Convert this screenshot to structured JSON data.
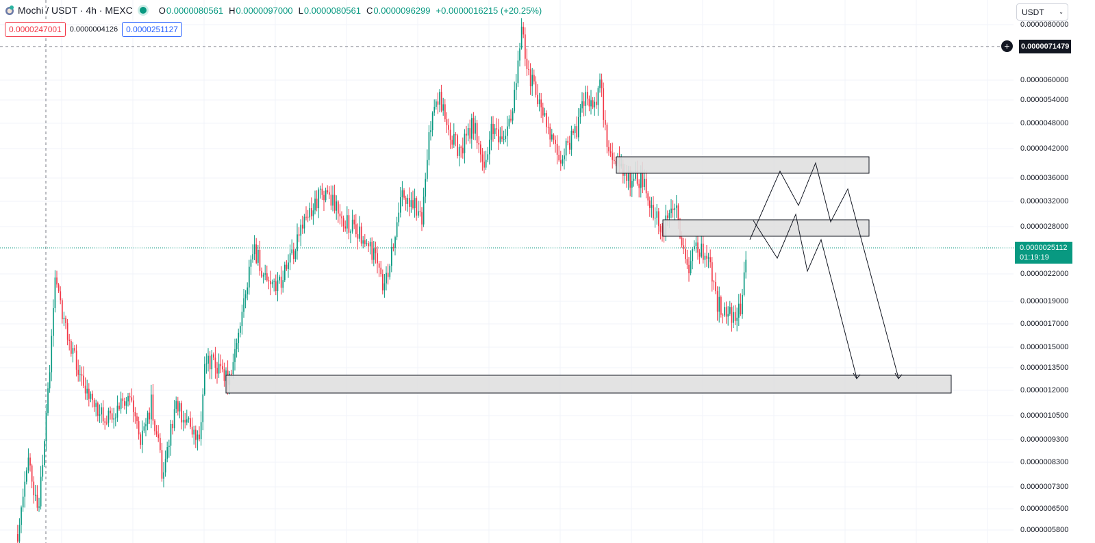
{
  "header": {
    "symbol": "Mochi / USDT · 4h · MEXC",
    "open_label": "O",
    "open": "0.0000080561",
    "high_label": "H",
    "high": "0.0000097000",
    "low_label": "L",
    "low": "0.0000080561",
    "close_label": "C",
    "close": "0.0000096299",
    "change": "+0.0000016215 (+20.25%)"
  },
  "trade": {
    "sell": "0.0000247001",
    "spread": "0.0000004126",
    "buy": "0.0000251127"
  },
  "currency": {
    "selected": "USDT"
  },
  "price_axis": [
    "0.0000080000",
    "0.0000060000",
    "0.0000054000",
    "0.0000048000",
    "0.0000042000",
    "0.0000036000",
    "0.0000032000",
    "0.0000028000",
    "0.0000022000",
    "0.0000019000",
    "0.0000017000",
    "0.0000015000",
    "0.0000013500",
    "0.0000012000",
    "0.0000010500",
    "0.0000009300",
    "0.0000008300",
    "0.0000007300",
    "0.0000006500",
    "0.0000005800"
  ],
  "crosshair": {
    "price": "0.0000071479"
  },
  "last_price": {
    "price": "0.0000025112",
    "countdown": "01:19:19"
  },
  "colors": {
    "up": "#089981",
    "down": "#f23645",
    "box_fill": "#e0e0e0",
    "box_stroke": "#131722",
    "grid": "#f0f3fa"
  },
  "chart_data": {
    "type": "candlestick",
    "symbol": "Mochi / USDT",
    "timeframe": "4h",
    "exchange": "MEXC",
    "scale": "log",
    "ylim": [
      5.8e-06,
      8.2e-06
    ],
    "price_path": [
      6.2e-07,
      8e-07,
      2.5e-06,
      1.6e-06,
      1.3e-06,
      1e-06,
      8.5e-07,
      7.3e-07,
      1e-06,
      1.4e-06,
      1.1e-06,
      1.3e-06,
      1.9e-06,
      2e-06,
      2.6e-06,
      3.3e-06,
      3.6e-06,
      3e-06,
      2.8e-06,
      2.1e-06,
      3e-06,
      5e-06,
      5.7e-06,
      3.8e-06,
      4.3e-06,
      5.6e-06,
      3.6e-06,
      6e-06,
      7.4e-06,
      5.8e-06,
      4.3e-06,
      4.2e-06,
      6e-06,
      5.4e-06,
      4e-06,
      3.4e-06,
      2.9e-06,
      3.4e-06,
      2.5e-06,
      2e-06,
      1.8e-06,
      1.7e-06,
      2.5e-06
    ],
    "zones": [
      {
        "low": 3.7e-06,
        "high": 4e-06
      },
      {
        "low": 2.6e-06,
        "high": 2.9e-06
      },
      {
        "low": 1.2e-06,
        "high": 1.3e-06
      }
    ],
    "projection_paths": [
      [
        2.6e-06,
        3.6e-06,
        3.1e-06,
        3.9e-06,
        2.9e-06,
        3.4e-06,
        1.3e-06
      ],
      [
        2.9e-06,
        2.4e-06,
        2.9e-06,
        2.2e-06,
        2.5e-06,
        1.3e-06
      ]
    ],
    "crosshair_price": 7.1479e-06,
    "last_price": 2.5112e-06
  }
}
